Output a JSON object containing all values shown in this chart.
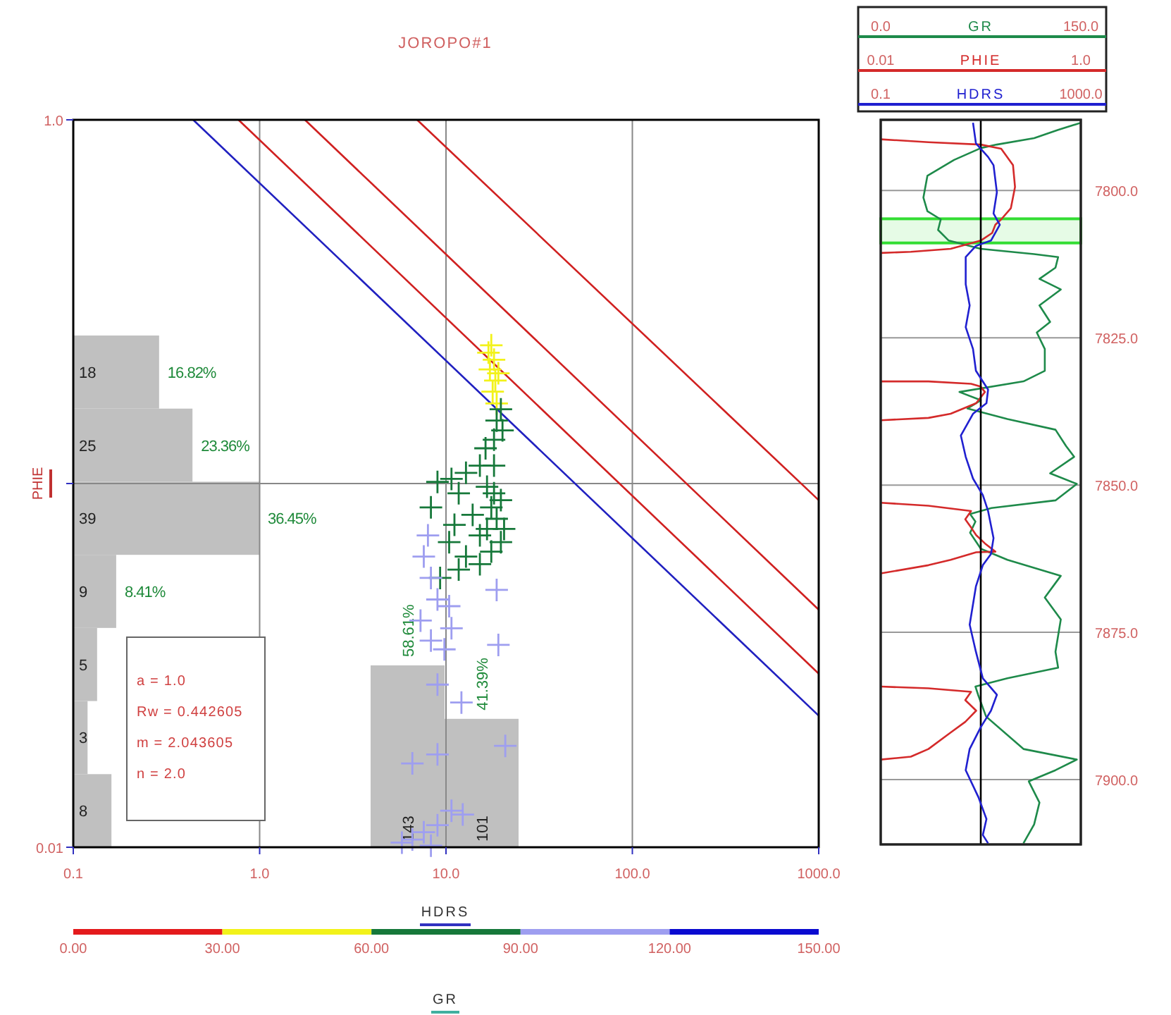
{
  "chart_data": [
    {
      "type": "scatter",
      "title": "JOROPO#1",
      "xlabel": "HDRS",
      "ylabel": "PHIE",
      "clabel": "GR",
      "log": "xy",
      "grid": true,
      "xlim": [
        0.1,
        1000
      ],
      "xticks": [
        {
          "value": 0.1,
          "label": "0.1"
        },
        {
          "value": 1,
          "label": "1.0"
        },
        {
          "value": 10,
          "label": "10.0"
        },
        {
          "value": 100,
          "label": "100.0"
        },
        {
          "value": 1000,
          "label": "1000.0"
        }
      ],
      "ylim": [
        0.01,
        1
      ],
      "yticks": [
        {
          "value": 0.01,
          "label": "0.01"
        },
        {
          "value": 0.1,
          "label": null
        },
        {
          "value": 1,
          "label": "1.0"
        }
      ],
      "clim": [
        0,
        150
      ],
      "cticks": [
        {
          "value": 0,
          "label": "0.00"
        },
        {
          "value": 30,
          "label": "30.00"
        },
        {
          "value": 60,
          "label": "60.00"
        },
        {
          "value": 90,
          "label": "90.00"
        },
        {
          "value": 120,
          "label": "120.00"
        },
        {
          "value": 150,
          "label": "150.00"
        }
      ],
      "annotations": [
        "a = 1.0",
        "Rw = 0.442605",
        "m = 2.043605",
        "n = 2.0"
      ],
      "series": [
        {
          "type": "line",
          "color": "#2020c0",
          "x": [
            0.44,
            1000
          ],
          "values": [
            1,
            0.023
          ]
        },
        {
          "type": "line",
          "color": "#d02020",
          "x": [
            0.77,
            1000
          ],
          "values": [
            1,
            0.03
          ]
        },
        {
          "type": "line",
          "color": "#d02020",
          "x": [
            1.75,
            1000
          ],
          "values": [
            1,
            0.045
          ]
        },
        {
          "type": "line",
          "color": "#d02020",
          "x": [
            7.0,
            1000
          ],
          "values": [
            1,
            0.09
          ]
        },
        {
          "type": "scatter",
          "marker": "cross",
          "color": "#f2f21a",
          "x": [
            17.5,
            18.1,
            17.2,
            18.4,
            17.8,
            18.7,
            16.9,
            19.1
          ],
          "values": [
            0.24,
            0.219,
            0.206,
            0.192,
            0.179,
            0.166,
            0.229,
            0.201
          ]
        },
        {
          "type": "scatter",
          "marker": "cross",
          "color": "#16783a",
          "x": [
            19.7,
            18.7,
            20.1,
            18.1,
            10.7,
            12.8,
            15.2,
            11.7,
            9.0,
            16.6,
            18.1,
            19.7,
            17.5,
            18.7,
            16.6,
            15.2,
            19.7,
            13.9,
            11.1,
            10.4,
            12.8,
            11.7,
            15.2,
            17.5,
            20.5,
            8.3,
            9.3,
            18.1,
            16.3
          ],
          "values": [
            0.16,
            0.149,
            0.14,
            0.132,
            0.103,
            0.107,
            0.112,
            0.094,
            0.101,
            0.098,
            0.094,
            0.09,
            0.086,
            0.08,
            0.075,
            0.072,
            0.069,
            0.082,
            0.077,
            0.069,
            0.063,
            0.058,
            0.06,
            0.065,
            0.075,
            0.086,
            0.055,
            0.112,
            0.125
          ]
        },
        {
          "type": "scatter",
          "marker": "cross",
          "color": "#9e9ef0",
          "x": [
            8.0,
            7.6,
            8.3,
            9.0,
            7.3,
            10.4,
            10.7,
            8.3,
            9.8,
            18.7,
            19.1,
            9.0,
            12.1,
            20.8,
            6.6,
            9.0,
            7.6,
            9.0,
            10.7,
            12.3,
            5.8,
            8.3,
            6.6
          ],
          "values": [
            0.072,
            0.063,
            0.055,
            0.048,
            0.042,
            0.046,
            0.04,
            0.037,
            0.035,
            0.051,
            0.036,
            0.028,
            0.025,
            0.019,
            0.017,
            0.018,
            0.011,
            0.0115,
            0.0126,
            0.0123,
            0.0103,
            0.0101,
            0.0105
          ]
        }
      ]
    },
    {
      "type": "bar",
      "orientation": "horizontal",
      "color": "#c0c0c0",
      "categories": [
        "18",
        "25",
        "39",
        "9",
        "5",
        "3",
        "8"
      ],
      "values": [
        16.82,
        23.36,
        36.45,
        8.41,
        4.67,
        2.8,
        7.48
      ],
      "value_labels": [
        "16.82%",
        "23.36%",
        "36.45%",
        "8.41%",
        null,
        null,
        null
      ]
    },
    {
      "type": "bar",
      "color": "#c0c0c0",
      "categories": [
        "143",
        "101"
      ],
      "values": [
        58.61,
        41.39
      ],
      "value_labels": [
        "58.61%",
        "41.39%"
      ]
    },
    {
      "type": "line",
      "orientation": "horizontal",
      "legend": "top",
      "grid": "y",
      "xlim": [
        0,
        150
      ],
      "xticks": [
        {
          "value": 0,
          "label": "0.0"
        },
        {
          "value": 150,
          "label": "150.0"
        }
      ],
      "x2lim": [
        0.01,
        1
      ],
      "x2ticks": [
        {
          "value": 0.01,
          "label": "0.01"
        },
        {
          "value": 1,
          "label": "1.0"
        }
      ],
      "log": "x2",
      "ylim": [
        7911,
        7788
      ],
      "yticks": [
        {
          "value": 7800,
          "label": "7800.0"
        },
        {
          "value": 7825,
          "label": "7825.0"
        },
        {
          "value": 7850,
          "label": "7850.0"
        },
        {
          "value": 7875,
          "label": "7875.0"
        },
        {
          "value": 7900,
          "label": "7900.0"
        }
      ],
      "bands": [
        {
          "axis": "y",
          "from": 7804.8,
          "to": 7808.9,
          "color": "#33dd33"
        }
      ],
      "series": [
        {
          "name": "GR",
          "color": "#1e8a4a",
          "x": [
            7788.5,
            7789.7,
            7791.1,
            7792.2,
            7792.8,
            7794.8,
            7797.5,
            7801.2,
            7803.5,
            7804.9,
            7806.7,
            7808.5,
            7809.9,
            7810.8,
            7811.3,
            7813.1,
            7815,
            7816.8,
            7819.5,
            7822.3,
            7824.1,
            7826.9,
            7830.6,
            7832.4,
            7834.2,
            7835.6,
            7837,
            7838.8,
            7840.6,
            7843.4,
            7845.2,
            7848,
            7849.8,
            7852.6,
            7853.9,
            7854.9,
            7856.2,
            7858.1,
            7860.8,
            7862.7,
            7865.4,
            7869.1,
            7872.8,
            7878.3,
            7881,
            7882.8,
            7884.2,
            7885.6,
            7889.3,
            7894.8,
            7896.6,
            7898.4,
            7900.3,
            7903.9,
            7907.6,
            7910.8
          ],
          "values": [
            150,
            133,
            115,
            87,
            75,
            55,
            35,
            32,
            35,
            45,
            43,
            51,
            75,
            115,
            133,
            131,
            119,
            135,
            119,
            127,
            117,
            123,
            123,
            107,
            59,
            75,
            65,
            95,
            131,
            139,
            145,
            127,
            147,
            131,
            83,
            67,
            71,
            67,
            75,
            95,
            135,
            123,
            135,
            131,
            133,
            95,
            71,
            73,
            79,
            107,
            147,
            131,
            111,
            119,
            115,
            107
          ]
        },
        {
          "name": "PHIE",
          "color": "#d42a2a",
          "axis": "x2",
          "x": [
            7791.3,
            7791.8,
            7792.2,
            7792.9,
            7795.7,
            7799.4,
            7803,
            7804.9,
            7805.8,
            7807.2,
            7808.5,
            7809.9,
            7810.4,
            7810.6,
            7820,
            7832.4,
            7832.4,
            7832.8,
            7833.3,
            7834.2,
            7836.1,
            7837.9,
            7838.6,
            7839,
            7845,
            7853,
            7853.5,
            7854.4,
            7855.8,
            7857.2,
            7858.5,
            7859.9,
            7861.3,
            7861.4,
            7862.7,
            7863.6,
            7865,
            7875,
            7884.2,
            7884.5,
            7885.1,
            7886.5,
            7888.3,
            7890.2,
            7892,
            7894.8,
            7896.1,
            7896.6
          ],
          "values": [
            0.01,
            0.03,
            0.1,
            0.16,
            0.21,
            0.22,
            0.2,
            0.16,
            0.14,
            0.13,
            0.1,
            0.05,
            0.02,
            0.01,
            null,
            0.01,
            0.03,
            0.08,
            0.1,
            0.11,
            0.09,
            0.05,
            0.03,
            0.01,
            null,
            0.01,
            0.03,
            0.08,
            0.07,
            0.08,
            0.09,
            0.11,
            0.14,
            0.09,
            0.05,
            0.03,
            0.01,
            null,
            0.01,
            0.03,
            0.08,
            0.07,
            0.09,
            0.07,
            0.05,
            0.03,
            0.02,
            0.01
          ]
        }
      ]
    },
    {
      "type": "line",
      "orientation": "horizontal",
      "legend": "top",
      "log": "x",
      "tick_labels": "x",
      "xlim": [
        0.1,
        1000
      ],
      "xticks": [
        {
          "value": 0.1,
          "label": "0.1"
        },
        {
          "value": 1000,
          "label": "1000.0"
        }
      ],
      "ylim": [
        7911,
        7788
      ],
      "ref_lines": [
        {
          "axis": "x",
          "value": 10,
          "color": "#000000"
        }
      ],
      "series": [
        {
          "name": "HDRS",
          "color": "#2020d0",
          "x": [
            7788.5,
            7792,
            7794.3,
            7795.7,
            7800.3,
            7803.9,
            7805.8,
            7808.5,
            7809.4,
            7811.3,
            7815.9,
            7819.5,
            7823.2,
            7826.9,
            7830.6,
            7833.8,
            7836.1,
            7837.9,
            7841.6,
            7845.2,
            7848.9,
            7851.7,
            7854.4,
            7859,
            7861.7,
            7863.6,
            7867.2,
            7873.7,
            7878.3,
            7882.8,
            7885.6,
            7888.3,
            7891.1,
            7894.8,
            7898.4,
            7903,
            7906.7,
            7909.4,
            7910.8
          ],
          "values": [
            7,
            8,
            14,
            18,
            21,
            18,
            24,
            16,
            8,
            5,
            5,
            6,
            5,
            7,
            8,
            14,
            13,
            7,
            4,
            5,
            7,
            11,
            14,
            18,
            16,
            11,
            8,
            6,
            8,
            11,
            21,
            16,
            10,
            6,
            5,
            9,
            13,
            11,
            14
          ]
        }
      ]
    }
  ]
}
